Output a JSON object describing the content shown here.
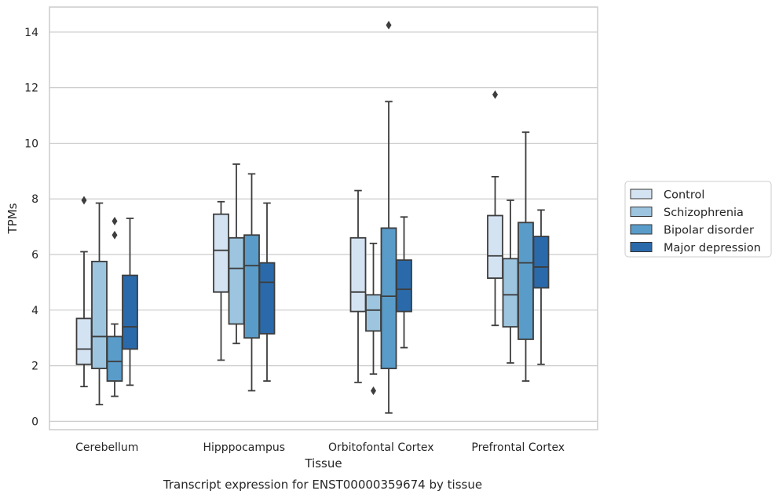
{
  "chart_data": {
    "type": "boxplot",
    "caption": "Transcript expression for ENST00000359674 by tissue",
    "xlabel": "Tissue",
    "ylabel": "TPMs",
    "ylim": [
      -0.3,
      14.9
    ],
    "yticks": [
      0,
      2,
      4,
      6,
      8,
      10,
      12,
      14
    ],
    "grid": true,
    "legend_position": "right",
    "categories": [
      "Cerebellum",
      "Hipppocampus",
      "Orbitofontal Cortex",
      "Prefrontal Cortex"
    ],
    "series": [
      {
        "name": "Control",
        "color": "#d4e3f2",
        "boxes": [
          {
            "whislo": 1.25,
            "q1": 2.05,
            "med": 2.6,
            "q3": 3.7,
            "whishi": 6.1,
            "fliers": [
              7.95
            ]
          },
          {
            "whislo": 2.2,
            "q1": 4.65,
            "med": 6.15,
            "q3": 7.45,
            "whishi": 7.9,
            "fliers": []
          },
          {
            "whislo": 1.4,
            "q1": 3.95,
            "med": 4.65,
            "q3": 6.6,
            "whishi": 8.3,
            "fliers": []
          },
          {
            "whislo": 3.45,
            "q1": 5.15,
            "med": 5.95,
            "q3": 7.4,
            "whishi": 8.8,
            "fliers": [
              11.75
            ]
          }
        ]
      },
      {
        "name": "Schizophrenia",
        "color": "#9dc5df",
        "boxes": [
          {
            "whislo": 0.6,
            "q1": 1.9,
            "med": 3.05,
            "q3": 5.75,
            "whishi": 7.85,
            "fliers": []
          },
          {
            "whislo": 2.8,
            "q1": 3.5,
            "med": 5.5,
            "q3": 6.6,
            "whishi": 9.25,
            "fliers": []
          },
          {
            "whislo": 1.7,
            "q1": 3.25,
            "med": 4.0,
            "q3": 4.55,
            "whishi": 6.4,
            "fliers": [
              1.1
            ]
          },
          {
            "whislo": 2.1,
            "q1": 3.4,
            "med": 4.55,
            "q3": 5.85,
            "whishi": 7.95,
            "fliers": []
          }
        ]
      },
      {
        "name": "Bipolar disorder",
        "color": "#5a9cc9",
        "boxes": [
          {
            "whislo": 0.9,
            "q1": 1.45,
            "med": 2.15,
            "q3": 3.05,
            "whishi": 3.5,
            "fliers": [
              6.7,
              7.2
            ]
          },
          {
            "whislo": 1.1,
            "q1": 3.0,
            "med": 5.6,
            "q3": 6.7,
            "whishi": 8.9,
            "fliers": []
          },
          {
            "whislo": 0.3,
            "q1": 1.9,
            "med": 4.5,
            "q3": 6.95,
            "whishi": 11.5,
            "fliers": [
              14.25
            ]
          },
          {
            "whislo": 1.45,
            "q1": 2.95,
            "med": 5.7,
            "q3": 7.15,
            "whishi": 10.4,
            "fliers": []
          }
        ]
      },
      {
        "name": "Major depression",
        "color": "#2b6aaa",
        "boxes": [
          {
            "whislo": 1.3,
            "q1": 2.6,
            "med": 3.4,
            "q3": 5.25,
            "whishi": 7.3,
            "fliers": []
          },
          {
            "whislo": 1.45,
            "q1": 3.15,
            "med": 5.0,
            "q3": 5.7,
            "whishi": 7.85,
            "fliers": []
          },
          {
            "whislo": 2.65,
            "q1": 3.95,
            "med": 4.75,
            "q3": 5.8,
            "whishi": 7.35,
            "fliers": []
          },
          {
            "whislo": 2.05,
            "q1": 4.8,
            "med": 5.55,
            "q3": 6.65,
            "whishi": 7.6,
            "fliers": []
          }
        ]
      }
    ]
  },
  "colors": {
    "grid": "#cccccc",
    "frame": "#cccccc",
    "box_edge": "#3d3d3d",
    "text": "#262626"
  }
}
